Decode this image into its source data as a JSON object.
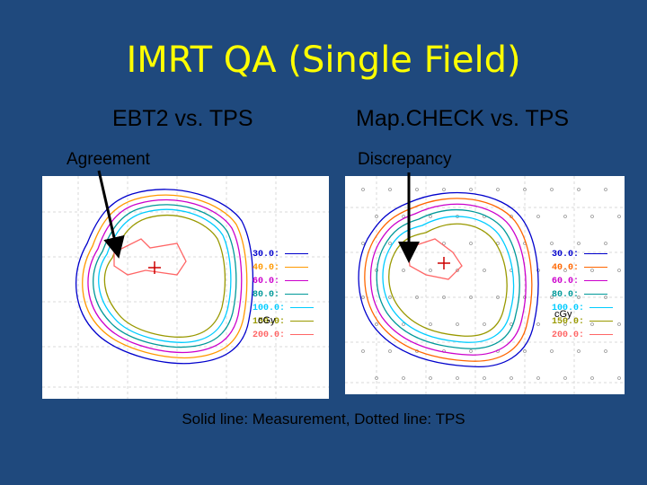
{
  "title": "IMRT QA (Single Field)",
  "left": {
    "subtitle": "EBT2 vs. TPS",
    "annotation": "Agreement",
    "legend": [
      {
        "label": "30.0:",
        "color": "#0000cc"
      },
      {
        "label": "40.0:",
        "color": "#ff9900"
      },
      {
        "label": "60.0:",
        "color": "#cc00cc"
      },
      {
        "label": "80.0:",
        "color": "#009999"
      },
      {
        "label": "100.0:",
        "color": "#00ccff"
      },
      {
        "label": "150.0:",
        "color": "#999900"
      },
      {
        "label": "200.0:",
        "color": "#ff6666"
      }
    ],
    "unit": "cGy"
  },
  "right": {
    "subtitle": "Map.CHECK vs. TPS",
    "annotation": "Discrepancy",
    "legend": [
      {
        "label": "30.0:",
        "color": "#0000cc"
      },
      {
        "label": "40.0:",
        "color": "#ff6600"
      },
      {
        "label": "60.0:",
        "color": "#cc00cc"
      },
      {
        "label": "80.0:",
        "color": "#009999"
      },
      {
        "label": "100.0:",
        "color": "#00ccff"
      },
      {
        "label": "150.0:",
        "color": "#999900"
      },
      {
        "label": "200.0:",
        "color": "#ff6666"
      }
    ],
    "unit": "cGy"
  },
  "caption": "Solid line: Measurement, Dotted line: TPS"
}
